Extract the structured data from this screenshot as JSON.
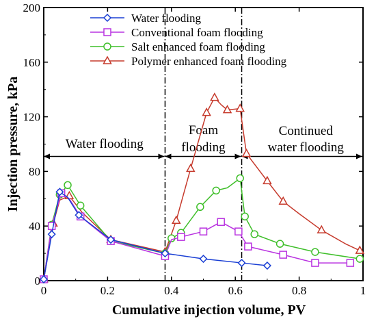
{
  "chart_data": {
    "type": "line",
    "title": "",
    "xlabel": "Cumulative injection volume, PV",
    "ylabel": "Injection pressure, kPa",
    "xlim": [
      0,
      1.0
    ],
    "ylim": [
      0,
      200
    ],
    "xticks": [
      0,
      0.2,
      0.4,
      0.6,
      0.8,
      1
    ],
    "xtick_labels": [
      "0",
      "0.2",
      "0.4",
      "0.6",
      "0.8",
      "1"
    ],
    "yticks": [
      0,
      40,
      80,
      120,
      160,
      200
    ],
    "ytick_labels": [
      "0",
      "40",
      "80",
      "120",
      "160",
      "200"
    ],
    "grid": false,
    "legend_position": "top-right",
    "series": [
      {
        "name": "Water flooding",
        "color": "#1a3fd4",
        "marker": "diamond",
        "x": [
          0.0,
          0.025,
          0.05,
          0.075,
          0.11,
          0.21,
          0.38,
          0.5,
          0.62,
          0.7
        ],
        "y": [
          1,
          34,
          65,
          61,
          48,
          30,
          20,
          16,
          13,
          11
        ],
        "markers": [
          0,
          1,
          2,
          4,
          5,
          6,
          7,
          8,
          9
        ]
      },
      {
        "name": "Conventional foam flooding",
        "color": "#b933e0",
        "marker": "square",
        "x": [
          0.0,
          0.025,
          0.055,
          0.08,
          0.115,
          0.21,
          0.38,
          0.4,
          0.43,
          0.5,
          0.555,
          0.61,
          0.64,
          0.75,
          0.85,
          0.96
        ],
        "y": [
          1,
          40,
          64,
          60,
          47,
          29,
          18,
          30,
          32,
          36,
          43,
          36,
          25,
          19,
          13,
          13
        ],
        "markers": [
          0,
          1,
          2,
          4,
          5,
          6,
          8,
          9,
          10,
          11,
          12,
          13,
          14,
          15
        ]
      },
      {
        "name": "Salt enhanced foam flooding",
        "color": "#3fbf2a",
        "marker": "circle",
        "x": [
          0.0,
          0.025,
          0.05,
          0.075,
          0.115,
          0.21,
          0.38,
          0.4,
          0.43,
          0.49,
          0.54,
          0.575,
          0.615,
          0.63,
          0.66,
          0.74,
          0.85,
          0.99
        ],
        "y": [
          1,
          41,
          63,
          70,
          55,
          29,
          20,
          31,
          35,
          54,
          66,
          68,
          75,
          47,
          34,
          27,
          21,
          16
        ],
        "markers": [
          0,
          1,
          2,
          3,
          4,
          5,
          6,
          7,
          8,
          9,
          10,
          12,
          13,
          14,
          15,
          16,
          17
        ]
      },
      {
        "name": "Polymer enhanced foam flooding",
        "color": "#c63a2c",
        "marker": "triangle",
        "x": [
          0.0,
          0.03,
          0.05,
          0.08,
          0.12,
          0.21,
          0.38,
          0.415,
          0.46,
          0.51,
          0.535,
          0.555,
          0.575,
          0.615,
          0.635,
          0.7,
          0.75,
          0.8,
          0.87,
          0.945,
          0.99
        ],
        "y": [
          1,
          42,
          59,
          62,
          50,
          30,
          21,
          44,
          82,
          123,
          134,
          129,
          125,
          126,
          93,
          73,
          58,
          49,
          37,
          27,
          22
        ],
        "markers": [
          0,
          1,
          3,
          5,
          6,
          7,
          8,
          9,
          10,
          12,
          13,
          14,
          15,
          16,
          18,
          20
        ]
      }
    ],
    "vertical_lines": [
      0.38,
      0.62
    ],
    "regions": [
      {
        "lines": [
          "Water flooding"
        ],
        "x_start": 0.0,
        "x_end": 0.38,
        "arrow_y": 91
      },
      {
        "lines": [
          "Foam",
          "flooding"
        ],
        "x_start": 0.38,
        "x_end": 0.62,
        "arrow_y": 91
      },
      {
        "lines": [
          "Continued",
          "water flooding"
        ],
        "x_start": 0.62,
        "x_end": 1.0,
        "arrow_y": 91
      }
    ]
  }
}
